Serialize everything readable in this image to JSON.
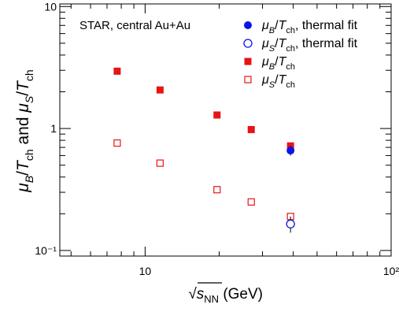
{
  "chart_data": {
    "type": "scatter",
    "annotation": "STAR, central Au+Au",
    "xscale": "log",
    "yscale": "log",
    "xlim": [
      4.5,
      100
    ],
    "ylim": [
      0.09,
      10.5
    ],
    "x_ticks": [
      {
        "value": 10,
        "label": "10"
      },
      {
        "value": 100,
        "label": "10²"
      }
    ],
    "y_ticks": [
      {
        "value": 0.1,
        "label": "10⁻¹"
      },
      {
        "value": 1,
        "label": "1"
      },
      {
        "value": 10,
        "label": "10"
      }
    ],
    "xlabel": {
      "prefix": "√",
      "var": "s",
      "sub": "NN",
      "suffix": " (GeV)"
    },
    "ylabel": {
      "a_var": "μ",
      "a_sub": "B",
      "slash1": "/",
      "t1": "T",
      "t1_sub": "ch",
      "and": " and ",
      "b_var": "μ",
      "b_sub": "S",
      "slash2": "/",
      "t2": "T",
      "t2_sub": "ch"
    },
    "legend_position": "top-right",
    "series": [
      {
        "key": "muB_fit",
        "legend": {
          "var": "μ",
          "sub": "B",
          "slash": "/",
          "t": "T",
          "t_sub": "ch",
          "suffix": ", thermal fit"
        },
        "marker": "filled-circle",
        "color": "#0a14e6",
        "x": [
          39
        ],
        "y": [
          0.66
        ],
        "yerr": [
          0.06
        ]
      },
      {
        "key": "muS_fit",
        "legend": {
          "var": "μ",
          "sub": "S",
          "slash": "/",
          "t": "T",
          "t_sub": "ch",
          "suffix": ", thermal fit"
        },
        "marker": "open-circle",
        "color": "#0a14e6",
        "x": [
          39
        ],
        "y": [
          0.165
        ],
        "yerr": [
          0.025
        ]
      },
      {
        "key": "muB",
        "legend": {
          "var": "μ",
          "sub": "B",
          "slash": "/",
          "t": "T",
          "t_sub": "ch",
          "suffix": ""
        },
        "marker": "filled-square",
        "color": "#e61414",
        "x": [
          7.7,
          11.5,
          19.6,
          27,
          39
        ],
        "y": [
          2.95,
          2.07,
          1.29,
          0.98,
          0.72
        ],
        "yerr": [
          0,
          0,
          0,
          0,
          0
        ]
      },
      {
        "key": "muS",
        "legend": {
          "var": "μ",
          "sub": "S",
          "slash": "/",
          "t": "T",
          "t_sub": "ch",
          "suffix": ""
        },
        "marker": "open-square",
        "color": "#e61414",
        "x": [
          7.7,
          11.5,
          19.6,
          27,
          39
        ],
        "y": [
          0.76,
          0.52,
          0.315,
          0.25,
          0.19
        ],
        "yerr": [
          0,
          0,
          0,
          0,
          0
        ]
      }
    ]
  }
}
